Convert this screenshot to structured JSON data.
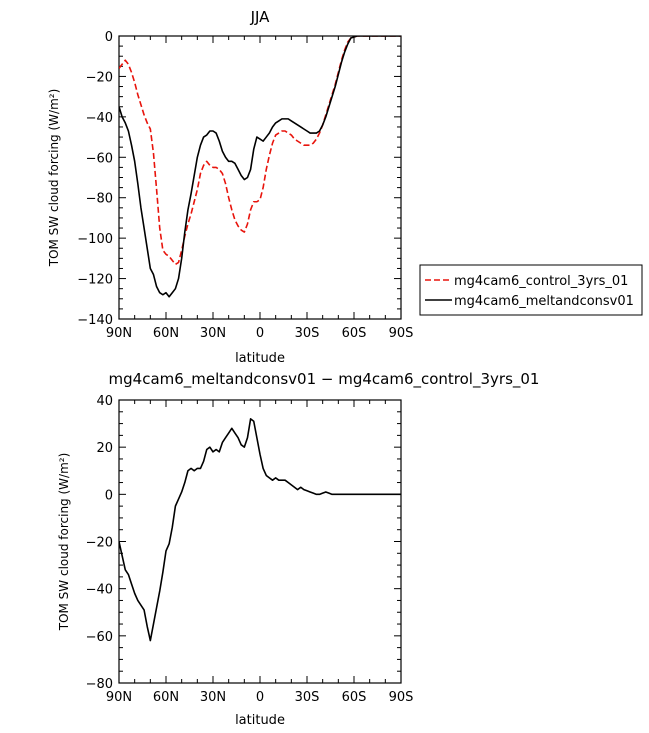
{
  "chart_data": [
    {
      "type": "line",
      "title": "JJA",
      "xlabel": "latitude",
      "ylabel": "TOM SW cloud forcing (W/m²)",
      "xlim": [
        -90,
        90
      ],
      "ylim": [
        -140,
        0
      ],
      "xticks": [
        -90,
        -60,
        -30,
        0,
        30,
        60,
        90
      ],
      "xticklabels": [
        "90N",
        "60N",
        "30N",
        "0",
        "30S",
        "60S",
        "90S"
      ],
      "yticks": [
        -140,
        -120,
        -100,
        -80,
        -60,
        -40,
        -20,
        0
      ],
      "yticklabels": [
        "−140",
        "−120",
        "−100",
        "−80",
        "−60",
        "−40",
        "−20",
        "0"
      ],
      "legend_position": "right",
      "series": [
        {
          "name": "mg4cam6_control_3yrs_01",
          "color": "#e8140c",
          "dash": "dashed",
          "x": [
            -90,
            -88,
            -86,
            -84,
            -82,
            -80,
            -78,
            -76,
            -74,
            -72,
            -70,
            -68,
            -66,
            -64,
            -62,
            -60,
            -58,
            -56,
            -54,
            -52,
            -50,
            -48,
            -46,
            -44,
            -42,
            -40,
            -38,
            -36,
            -34,
            -32,
            -30,
            -28,
            -26,
            -24,
            -22,
            -20,
            -18,
            -16,
            -14,
            -12,
            -10,
            -8,
            -6,
            -4,
            -2,
            0,
            2,
            4,
            6,
            8,
            10,
            12,
            14,
            16,
            18,
            20,
            22,
            24,
            26,
            28,
            30,
            32,
            34,
            36,
            38,
            40,
            42,
            44,
            46,
            48,
            50,
            52,
            54,
            56,
            58,
            60,
            62,
            64,
            66,
            68,
            70,
            72,
            74,
            76,
            78,
            80,
            82,
            84,
            86,
            88,
            90
          ],
          "y": [
            -16,
            -14,
            -12,
            -14,
            -18,
            -23,
            -29,
            -34,
            -39,
            -43,
            -46,
            -58,
            -76,
            -95,
            -106,
            -108,
            -109,
            -111,
            -113,
            -112,
            -106,
            -99,
            -93,
            -88,
            -82,
            -76,
            -68,
            -64,
            -62,
            -64,
            -65,
            -65,
            -66,
            -68,
            -73,
            -80,
            -86,
            -91,
            -94,
            -96,
            -97,
            -93,
            -86,
            -82,
            -82,
            -81,
            -75,
            -66,
            -59,
            -53,
            -49,
            -48,
            -47,
            -47,
            -48,
            -49,
            -51,
            -52,
            -53,
            -54,
            -54,
            -54,
            -53,
            -51,
            -48,
            -44,
            -39,
            -34,
            -29,
            -24,
            -18,
            -12,
            -7,
            -3,
            -1,
            -0.5,
            0,
            0,
            0,
            0,
            0,
            0,
            0,
            0,
            0,
            0,
            0,
            0,
            0,
            0,
            0
          ]
        },
        {
          "name": "mg4cam6_meltandconsv01",
          "color": "#000000",
          "dash": "solid",
          "x": [
            -90,
            -88,
            -86,
            -84,
            -82,
            -80,
            -78,
            -76,
            -74,
            -72,
            -70,
            -68,
            -66,
            -64,
            -62,
            -60,
            -58,
            -56,
            -54,
            -52,
            -50,
            -48,
            -46,
            -44,
            -42,
            -40,
            -38,
            -36,
            -34,
            -32,
            -30,
            -28,
            -26,
            -24,
            -22,
            -20,
            -18,
            -16,
            -14,
            -12,
            -10,
            -8,
            -6,
            -4,
            -2,
            0,
            2,
            4,
            6,
            8,
            10,
            12,
            14,
            16,
            18,
            20,
            22,
            24,
            26,
            28,
            30,
            32,
            34,
            36,
            38,
            40,
            42,
            44,
            46,
            48,
            50,
            52,
            54,
            56,
            58,
            60,
            62,
            64,
            66,
            68,
            70,
            72,
            74,
            76,
            78,
            80,
            82,
            84,
            86,
            88,
            90
          ],
          "y": [
            -35,
            -40,
            -43,
            -47,
            -54,
            -62,
            -73,
            -85,
            -95,
            -105,
            -115,
            -118,
            -124,
            -127,
            -128,
            -127,
            -129,
            -127,
            -125,
            -120,
            -110,
            -97,
            -86,
            -78,
            -69,
            -60,
            -54,
            -50,
            -49,
            -47,
            -47,
            -48,
            -52,
            -57,
            -60,
            -62,
            -62,
            -63,
            -66,
            -69,
            -71,
            -70,
            -66,
            -56,
            -50,
            -51,
            -52,
            -50,
            -48,
            -45,
            -43,
            -42,
            -41,
            -41,
            -41,
            -42,
            -43,
            -44,
            -45,
            -46,
            -47,
            -48,
            -48,
            -48,
            -47,
            -44,
            -40,
            -35,
            -30,
            -25,
            -19,
            -13,
            -8,
            -4,
            -1,
            -0.5,
            0,
            0,
            0,
            0,
            0,
            0,
            0,
            0,
            0,
            0,
            0,
            0,
            0,
            0,
            0
          ]
        }
      ]
    },
    {
      "type": "line",
      "title": "mg4cam6_meltandconsv01 − mg4cam6_control_3yrs_01",
      "xlabel": "latitude",
      "ylabel": "TOM SW cloud forcing (W/m²)",
      "xlim": [
        -90,
        90
      ],
      "ylim": [
        -80,
        40
      ],
      "xticks": [
        -90,
        -60,
        -30,
        0,
        30,
        60,
        90
      ],
      "xticklabels": [
        "90N",
        "60N",
        "30N",
        "0",
        "30S",
        "60S",
        "90S"
      ],
      "yticks": [
        -80,
        -60,
        -40,
        -20,
        0,
        20,
        40
      ],
      "yticklabels": [
        "−80",
        "−60",
        "−40",
        "−20",
        "0",
        "20",
        "40"
      ],
      "series": [
        {
          "color": "#000000",
          "dash": "solid",
          "x": [
            -90,
            -88,
            -86,
            -84,
            -82,
            -80,
            -78,
            -76,
            -74,
            -72,
            -70,
            -68,
            -66,
            -64,
            -62,
            -60,
            -58,
            -56,
            -54,
            -52,
            -50,
            -48,
            -46,
            -44,
            -42,
            -40,
            -38,
            -36,
            -34,
            -32,
            -30,
            -28,
            -26,
            -24,
            -22,
            -20,
            -18,
            -16,
            -14,
            -12,
            -10,
            -8,
            -6,
            -4,
            -2,
            0,
            2,
            4,
            6,
            8,
            10,
            12,
            14,
            16,
            18,
            20,
            22,
            24,
            26,
            28,
            30,
            32,
            34,
            36,
            38,
            40,
            42,
            44,
            46,
            48,
            50,
            52,
            54,
            56,
            58,
            60,
            62,
            64,
            66,
            68,
            70,
            72,
            74,
            76,
            78,
            80,
            82,
            84,
            86,
            88,
            90
          ],
          "y": [
            -20,
            -26,
            -32,
            -34,
            -38,
            -42,
            -45,
            -47,
            -49,
            -56,
            -62,
            -55,
            -48,
            -41,
            -33,
            -24,
            -21,
            -14,
            -5,
            -2,
            1,
            5,
            10,
            11,
            10,
            11,
            11,
            14,
            19,
            20,
            18,
            19,
            18,
            22,
            24,
            26,
            28,
            26,
            24,
            21,
            20,
            24,
            32,
            31,
            24,
            17,
            11,
            8,
            7,
            6,
            7,
            6,
            6,
            6,
            5,
            4,
            3,
            2,
            3,
            2,
            1.5,
            1,
            0.5,
            0,
            0,
            0.5,
            1,
            0.5,
            0,
            0,
            0,
            0,
            0,
            0,
            0,
            0,
            0,
            0,
            0,
            0,
            0,
            0,
            0,
            0,
            0,
            0,
            0,
            0,
            0,
            0,
            0
          ]
        }
      ]
    }
  ]
}
